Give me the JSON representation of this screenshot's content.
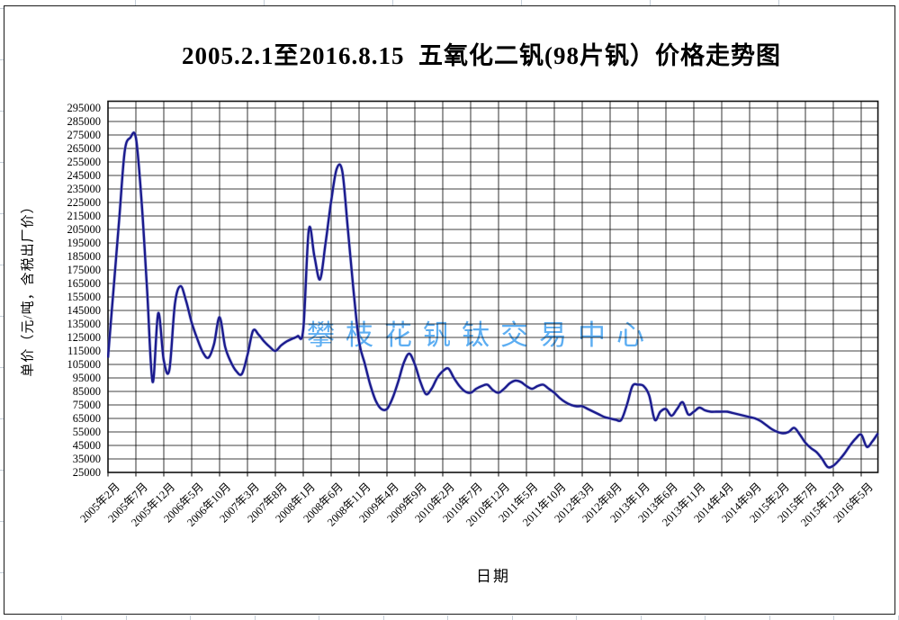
{
  "chart": {
    "title": "2005.2.1至2016.8.15  五氧化二钒(98片钒）价格走势图",
    "y_axis_title": "单价（元/吨，含税出厂价）",
    "x_axis_title": "日期",
    "watermark": "攀枝花钒钛交易中心",
    "colors": {
      "line": "#1b1b8e",
      "line_halo": "#9aa2d4",
      "grid": "#000000",
      "plot_border": "#111111",
      "watermark": "#55aaf2",
      "sheet_stub": "#c4ced8",
      "background": "#ffffff"
    }
  },
  "chart_data": {
    "type": "line",
    "title": "2005.2.1至2016.8.15  五氧化二钒(98片钒）价格走势图",
    "xlabel": "日期",
    "ylabel": "单价（元/吨，含税出厂价）",
    "ylim": [
      25000,
      300000
    ],
    "y_tick_step": 10000,
    "grid": true,
    "smoothed": true,
    "legend": "none",
    "y_tick_labels": [
      "295000",
      "285000",
      "275000",
      "265000",
      "255000",
      "245000",
      "235000",
      "225000",
      "215000",
      "205000",
      "195000",
      "185000",
      "175000",
      "165000",
      "155000",
      "145000",
      "135000",
      "125000",
      "115000",
      "105000",
      "95000",
      "85000",
      "75000",
      "65000",
      "55000",
      "45000",
      "35000",
      "25000"
    ],
    "x_tick_labels": [
      "2005年2月",
      "2005年7月",
      "2005年12月",
      "2006年5月",
      "2006年10月",
      "2007年3月",
      "2007年8月",
      "2008年1月",
      "2008年6月",
      "2008年11月",
      "2009年4月",
      "2009年9月",
      "2010年2月",
      "2010年7月",
      "2010年12月",
      "2011年5月",
      "2011年10月",
      "2012年3月",
      "2012年8月",
      "2013年1月",
      "2013年6月",
      "2013年11月",
      "2014年4月",
      "2014年9月",
      "2015年2月",
      "2015年7月",
      "2015年12月",
      "2016年5月"
    ],
    "x_months_per_tick": 5,
    "x_monthly_start": "2005-02",
    "x_monthly_end": "2016-08",
    "series": [
      {
        "name": "五氧化二钒(98片钒)价格",
        "unit": "元/吨",
        "monthly_values": [
          110000,
          161000,
          212000,
          263000,
          273000,
          273000,
          227000,
          161000,
          92000,
          143000,
          108000,
          101000,
          150000,
          163000,
          152000,
          136000,
          124000,
          114000,
          110000,
          120000,
          140000,
          118000,
          107000,
          100000,
          98000,
          112000,
          130000,
          127000,
          122000,
          118000,
          115000,
          119000,
          122000,
          124000,
          126000,
          131000,
          205000,
          185000,
          168000,
          195000,
          226000,
          250000,
          248000,
          205000,
          160000,
          122000,
          106000,
          90000,
          78000,
          72000,
          72000,
          80000,
          92000,
          106000,
          113000,
          105000,
          92000,
          83000,
          87000,
          95000,
          100000,
          102000,
          95000,
          89000,
          85000,
          84000,
          87000,
          89000,
          90000,
          86000,
          84000,
          87000,
          91000,
          93000,
          92000,
          89000,
          87000,
          89000,
          90000,
          87000,
          84000,
          80000,
          77000,
          75000,
          74000,
          74000,
          72000,
          70000,
          68000,
          66000,
          65000,
          64000,
          64000,
          75000,
          89000,
          90000,
          89000,
          82000,
          64000,
          70000,
          72000,
          67000,
          72000,
          77000,
          68000,
          70000,
          73000,
          71000,
          70000,
          70000,
          70000,
          70000,
          69000,
          68000,
          67000,
          66000,
          65000,
          63000,
          60000,
          57000,
          55000,
          54000,
          55000,
          58000,
          53000,
          47000,
          43000,
          40000,
          35000,
          29000,
          30000,
          34000,
          39000,
          45000,
          50000,
          53000,
          44000,
          48000,
          54000
        ]
      }
    ]
  }
}
